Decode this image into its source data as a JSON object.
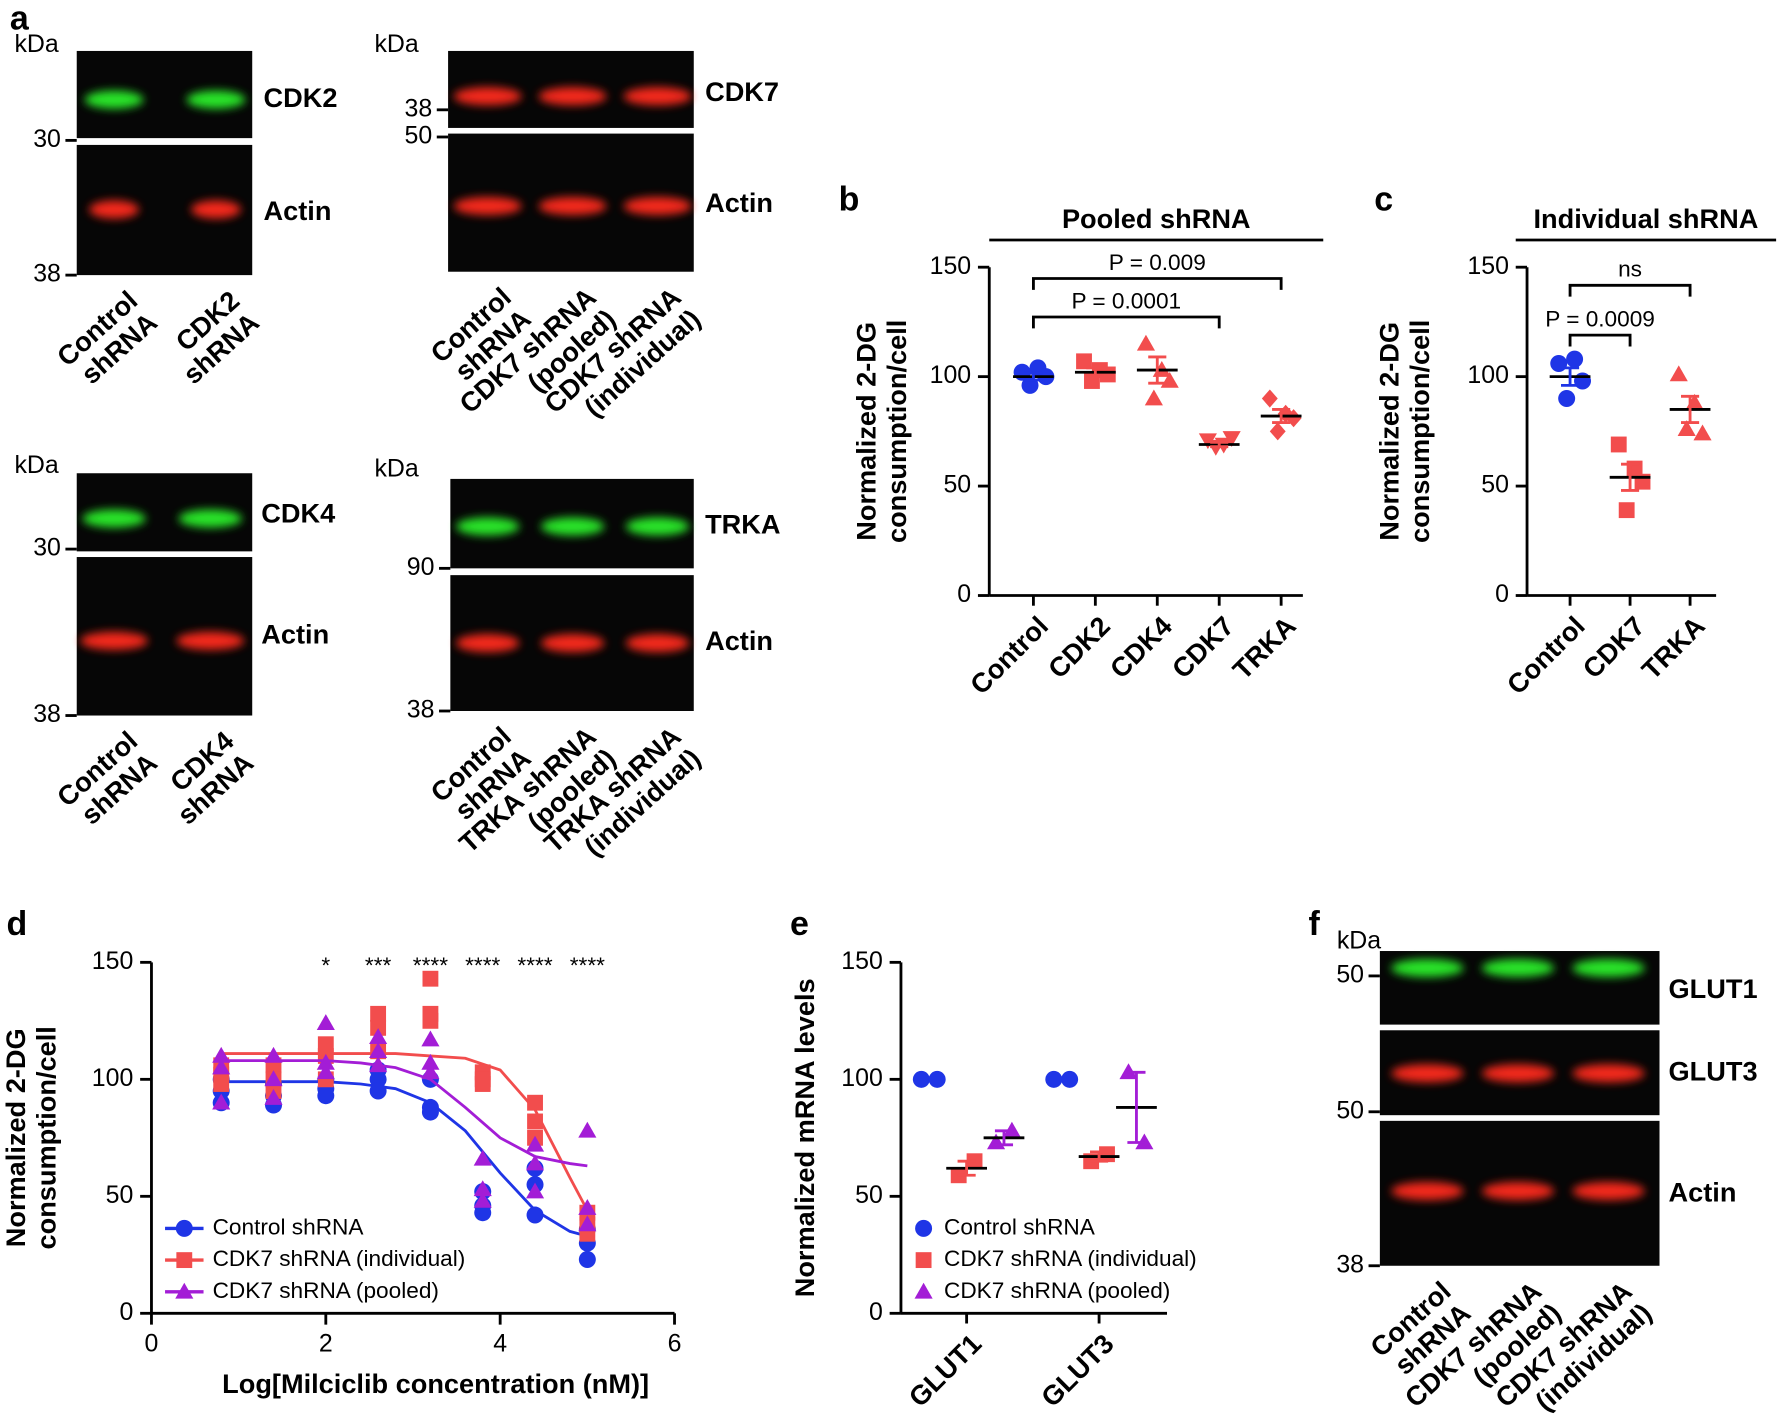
{
  "panel_labels": [
    "a",
    "b",
    "c",
    "d",
    "e",
    "f"
  ],
  "blots": [
    {
      "kda": "kDa",
      "ladder": [
        30,
        38
      ],
      "proteins": [
        "CDK2",
        "Actin"
      ],
      "lanes": [
        [
          "Control",
          "shRNA"
        ],
        [
          "CDK2",
          "shRNA"
        ]
      ]
    },
    {
      "kda": "kDa",
      "ladder": [
        38,
        50
      ],
      "proteins": [
        "CDK7",
        "Actin"
      ],
      "lanes": [
        [
          "Control",
          "shRNA"
        ],
        [
          "CDK7 shRNA",
          "(pooled)"
        ],
        [
          "CDK7 shRNA",
          "(individual)"
        ]
      ]
    },
    {
      "kda": "kDa",
      "ladder": [
        30,
        38
      ],
      "proteins": [
        "CDK4",
        "Actin"
      ],
      "lanes": [
        [
          "Control",
          "shRNA"
        ],
        [
          "CDK4",
          "shRNA"
        ]
      ]
    },
    {
      "kda": "kDa",
      "ladder": [
        90,
        38
      ],
      "proteins": [
        "TRKA",
        "Actin"
      ],
      "lanes": [
        [
          "Control",
          "shRNA"
        ],
        [
          "TRKA shRNA",
          "(pooled)"
        ],
        [
          "TRKA shRNA",
          "(individual)"
        ]
      ]
    },
    {
      "kda": "kDa",
      "ladder": [
        50,
        50,
        38
      ],
      "proteins": [
        "GLUT1",
        "GLUT3",
        "Actin"
      ],
      "lanes": [
        [
          "Control",
          "shRNA"
        ],
        [
          "CDK7 shRNA",
          "(pooled)"
        ],
        [
          "CDK7 shRNA",
          "(individual)"
        ]
      ]
    }
  ],
  "chart_data": [
    {
      "type": "dot",
      "title": "Pooled shRNA",
      "ylabel": [
        "Normalized 2-DG",
        "consumption/cell"
      ],
      "categories": [
        "Control",
        "CDK2",
        "CDK4",
        "CDK7",
        "TRKA"
      ],
      "points": [
        [
          102,
          104,
          100,
          96
        ],
        [
          107,
          103,
          101,
          98
        ],
        [
          115,
          103,
          98,
          90
        ],
        [
          71,
          69,
          72,
          68
        ],
        [
          90,
          83,
          81,
          75
        ]
      ],
      "means": [
        100,
        102,
        103,
        69,
        82
      ],
      "errors": [
        1.5,
        2,
        6,
        1,
        3
      ],
      "colors": [
        "#1f35e6",
        "#f24d4d",
        "#f24d4d",
        "#f24d4d",
        "#f24d4d"
      ],
      "markers": [
        "circle",
        "square",
        "triangle",
        "triangle-down",
        "diamond"
      ],
      "ylim": [
        0,
        150
      ],
      "yticks": [
        0,
        50,
        100,
        150
      ],
      "annotations": [
        {
          "text": "P = 0.009",
          "from": "Control",
          "to": "TRKA"
        },
        {
          "text": "P = 0.0001",
          "from": "Control",
          "to": "CDK7"
        }
      ]
    },
    {
      "type": "dot",
      "title": "Individual shRNA",
      "ylabel": [
        "Normalized 2-DG",
        "consumption/cell"
      ],
      "categories": [
        "Control",
        "CDK7",
        "TRKA"
      ],
      "points": [
        [
          106,
          108,
          98,
          90
        ],
        [
          69,
          58,
          52,
          39
        ],
        [
          101,
          88,
          74,
          76
        ]
      ],
      "means": [
        100,
        54,
        85
      ],
      "errors": [
        4,
        6,
        6
      ],
      "colors": [
        "#1f35e6",
        "#f24d4d",
        "#f24d4d"
      ],
      "markers": [
        "circle",
        "square",
        "triangle"
      ],
      "ylim": [
        0,
        150
      ],
      "yticks": [
        0,
        50,
        100,
        150
      ],
      "annotations": [
        {
          "text": "ns",
          "from": "Control",
          "to": "TRKA"
        },
        {
          "text": "P = 0.0009",
          "from": "Control",
          "to": "CDK7"
        }
      ]
    },
    {
      "type": "scatter",
      "ylabel": [
        "Normalized 2-DG",
        "consumption/cell"
      ],
      "xlabel": "Log[Milciclib concentration (nM)]",
      "xlim": [
        0,
        6
      ],
      "xticks": [
        0,
        2,
        4,
        6
      ],
      "ylim": [
        0,
        150
      ],
      "yticks": [
        0,
        50,
        100,
        150
      ],
      "x": [
        0.8,
        1.4,
        2,
        2.6,
        3.2,
        3.8,
        4.4,
        5
      ],
      "fit_x": [
        0.8,
        1.2,
        1.6,
        2,
        2.4,
        2.8,
        3.2,
        3.6,
        4,
        4.4,
        4.8,
        5
      ],
      "series": [
        {
          "name": "Control shRNA",
          "color": "#1f35e6",
          "marker": "circle",
          "values": [
            [
              100,
              95,
              90
            ],
            [
              98,
              93,
              89
            ],
            [
              100,
              96,
              93
            ],
            [
              104,
              100,
              95
            ],
            [
              100,
              88,
              86
            ],
            [
              52,
              46,
              43
            ],
            [
              62,
              55,
              42
            ],
            [
              36,
              30,
              23
            ]
          ],
          "fit": [
            99,
            99,
            99,
            99,
            98,
            96,
            90,
            78,
            60,
            44,
            35,
            33
          ]
        },
        {
          "name": "CDK7 shRNA (individual)",
          "color": "#f24d4d",
          "marker": "square",
          "values": [
            [
              106,
              102,
              98
            ],
            [
              106,
              100,
              95
            ],
            [
              115,
              110,
              100
            ],
            [
              128,
              122,
              112
            ],
            [
              143,
              128,
              125
            ],
            [
              103,
              100,
              98
            ],
            [
              90,
              82,
              75
            ],
            [
              43,
              38,
              34
            ]
          ],
          "fit": [
            111,
            111,
            111,
            111,
            111,
            111,
            110,
            109,
            104,
            87,
            58,
            44
          ]
        },
        {
          "name": "CDK7 shRNA (pooled)",
          "color": "#a31dd6",
          "marker": "triangle",
          "values": [
            [
              110,
              105,
              90
            ],
            [
              110,
              100,
              92
            ],
            [
              124,
              107,
              103
            ],
            [
              118,
              112,
              106
            ],
            [
              117,
              107,
              103
            ],
            [
              66,
              53,
              48
            ],
            [
              72,
              64,
              52
            ],
            [
              78,
              45,
              38
            ]
          ],
          "fit": [
            108,
            108,
            108,
            108,
            107,
            105,
            100,
            88,
            75,
            67,
            64,
            63
          ]
        }
      ],
      "significance": {
        "x": [
          2,
          2.6,
          3.2,
          3.8,
          4.4,
          5
        ],
        "labels": [
          "*",
          "***",
          "****",
          "****",
          "****",
          "****"
        ]
      },
      "legend": "lower left"
    },
    {
      "type": "group_dot",
      "ylabel": "Normalized mRNA levels",
      "categories": [
        "GLUT1",
        "GLUT3"
      ],
      "ylim": [
        0,
        150
      ],
      "yticks": [
        0,
        50,
        100,
        150
      ],
      "series": [
        {
          "name": "Control shRNA",
          "color": "#1f35e6",
          "marker": "circle",
          "values": [
            [
              100,
              100
            ],
            [
              100,
              100
            ]
          ]
        },
        {
          "name": "CDK7 shRNA (individual)",
          "color": "#f24d4d",
          "marker": "square",
          "values": [
            [
              59,
              65
            ],
            [
              65,
              68
            ]
          ],
          "means": [
            62,
            67
          ],
          "errors": [
            3,
            2
          ]
        },
        {
          "name": "CDK7 shRNA (pooled)",
          "color": "#a31dd6",
          "marker": "triangle",
          "values": [
            [
              73,
              78
            ],
            [
              103,
              73
            ]
          ],
          "means": [
            75,
            88
          ],
          "errors": [
            3,
            15
          ]
        }
      ],
      "legend": "lower left"
    }
  ]
}
